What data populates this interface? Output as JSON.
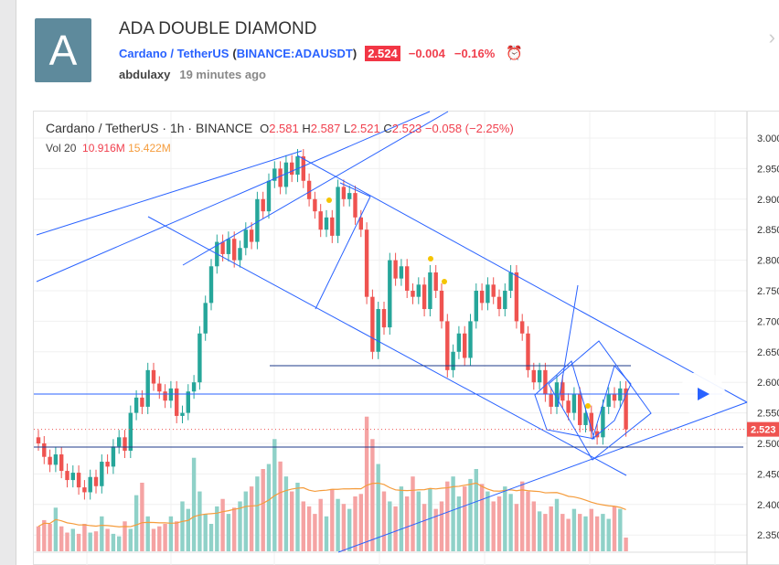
{
  "idea": {
    "avatar_letter": "A",
    "title": "ADA DOUBLE DIAMOND",
    "symbol_name": "Cardano / TetherUS",
    "symbol_code": "BINANCE:ADAUSDT",
    "price": "2.524",
    "change": "−0.004",
    "change_pct": "−0.16%",
    "author": "abdulaxy",
    "time_ago": "19 minutes ago",
    "alarm_icon": "alarm-clock-plus-icon"
  },
  "legend": {
    "symbol": "Cardano / TetherUS",
    "interval": "1h",
    "exchange": "BINANCE",
    "o_label": "O",
    "o": "2.581",
    "h_label": "H",
    "h": "2.587",
    "l_label": "L",
    "l": "2.521",
    "c_label": "C",
    "c": "2.523",
    "chg": "−0.058 (−2.25%)"
  },
  "volume": {
    "label": "Vol 20",
    "value": "10.916M",
    "ma": "15.422M"
  },
  "price_axis": {
    "ticks": [
      "3.000",
      "2.950",
      "2.900",
      "2.850",
      "2.800",
      "2.750",
      "2.700",
      "2.650",
      "2.600",
      "2.550",
      "2.500",
      "2.450",
      "2.400",
      "2.350"
    ],
    "last_label": "2.523"
  },
  "colors": {
    "up": "#26a69a",
    "down": "#ef5350",
    "drawing": "#2962ff",
    "vol_ma": "#f59c3c"
  },
  "chart_data": {
    "type": "candlestick",
    "interval": "1h",
    "ylim": [
      2.33,
      3.02
    ],
    "close": [
      2.5,
      2.478,
      2.465,
      2.482,
      2.455,
      2.44,
      2.452,
      2.428,
      2.42,
      2.445,
      2.43,
      2.47,
      2.462,
      2.495,
      2.51,
      2.488,
      2.55,
      2.575,
      2.56,
      2.62,
      2.598,
      2.585,
      2.57,
      2.59,
      2.545,
      2.55,
      2.585,
      2.6,
      2.68,
      2.73,
      2.79,
      2.83,
      2.81,
      2.835,
      2.8,
      2.82,
      2.85,
      2.83,
      2.9,
      2.88,
      2.93,
      2.95,
      2.92,
      2.96,
      2.94,
      2.97,
      2.93,
      2.9,
      2.88,
      2.85,
      2.87,
      2.84,
      2.92,
      2.9,
      2.91,
      2.87,
      2.85,
      2.74,
      2.65,
      2.72,
      2.69,
      2.8,
      2.77,
      2.79,
      2.75,
      2.74,
      2.76,
      2.72,
      2.78,
      2.75,
      2.7,
      2.62,
      2.65,
      2.68,
      2.64,
      2.7,
      2.75,
      2.73,
      2.76,
      2.74,
      2.72,
      2.75,
      2.78,
      2.7,
      2.68,
      2.62,
      2.6,
      2.62,
      2.58,
      2.56,
      2.6,
      2.57,
      2.55,
      2.58,
      2.53,
      2.55,
      2.52,
      2.51,
      2.56,
      2.58,
      2.57,
      2.59,
      2.523
    ],
    "volume_m": [
      20,
      25,
      22,
      35,
      20,
      15,
      18,
      14,
      22,
      15,
      16,
      28,
      18,
      14,
      12,
      24,
      18,
      45,
      55,
      28,
      18,
      20,
      22,
      28,
      24,
      40,
      34,
      75,
      48,
      30,
      22,
      36,
      42,
      30,
      35,
      40,
      48,
      52,
      60,
      66,
      70,
      90,
      72,
      60,
      48,
      55,
      40,
      36,
      30,
      42,
      28,
      50,
      42,
      38,
      34,
      44,
      46,
      108,
      90,
      70,
      48,
      40,
      36,
      52,
      44,
      60,
      48,
      38,
      50,
      34,
      40,
      56,
      60,
      44,
      52,
      58,
      66,
      54,
      48,
      40,
      44,
      52,
      46,
      38,
      56,
      48,
      40,
      32,
      30,
      36,
      42,
      30,
      26,
      34,
      30,
      28,
      34,
      28,
      30,
      26,
      36,
      34,
      11
    ]
  }
}
